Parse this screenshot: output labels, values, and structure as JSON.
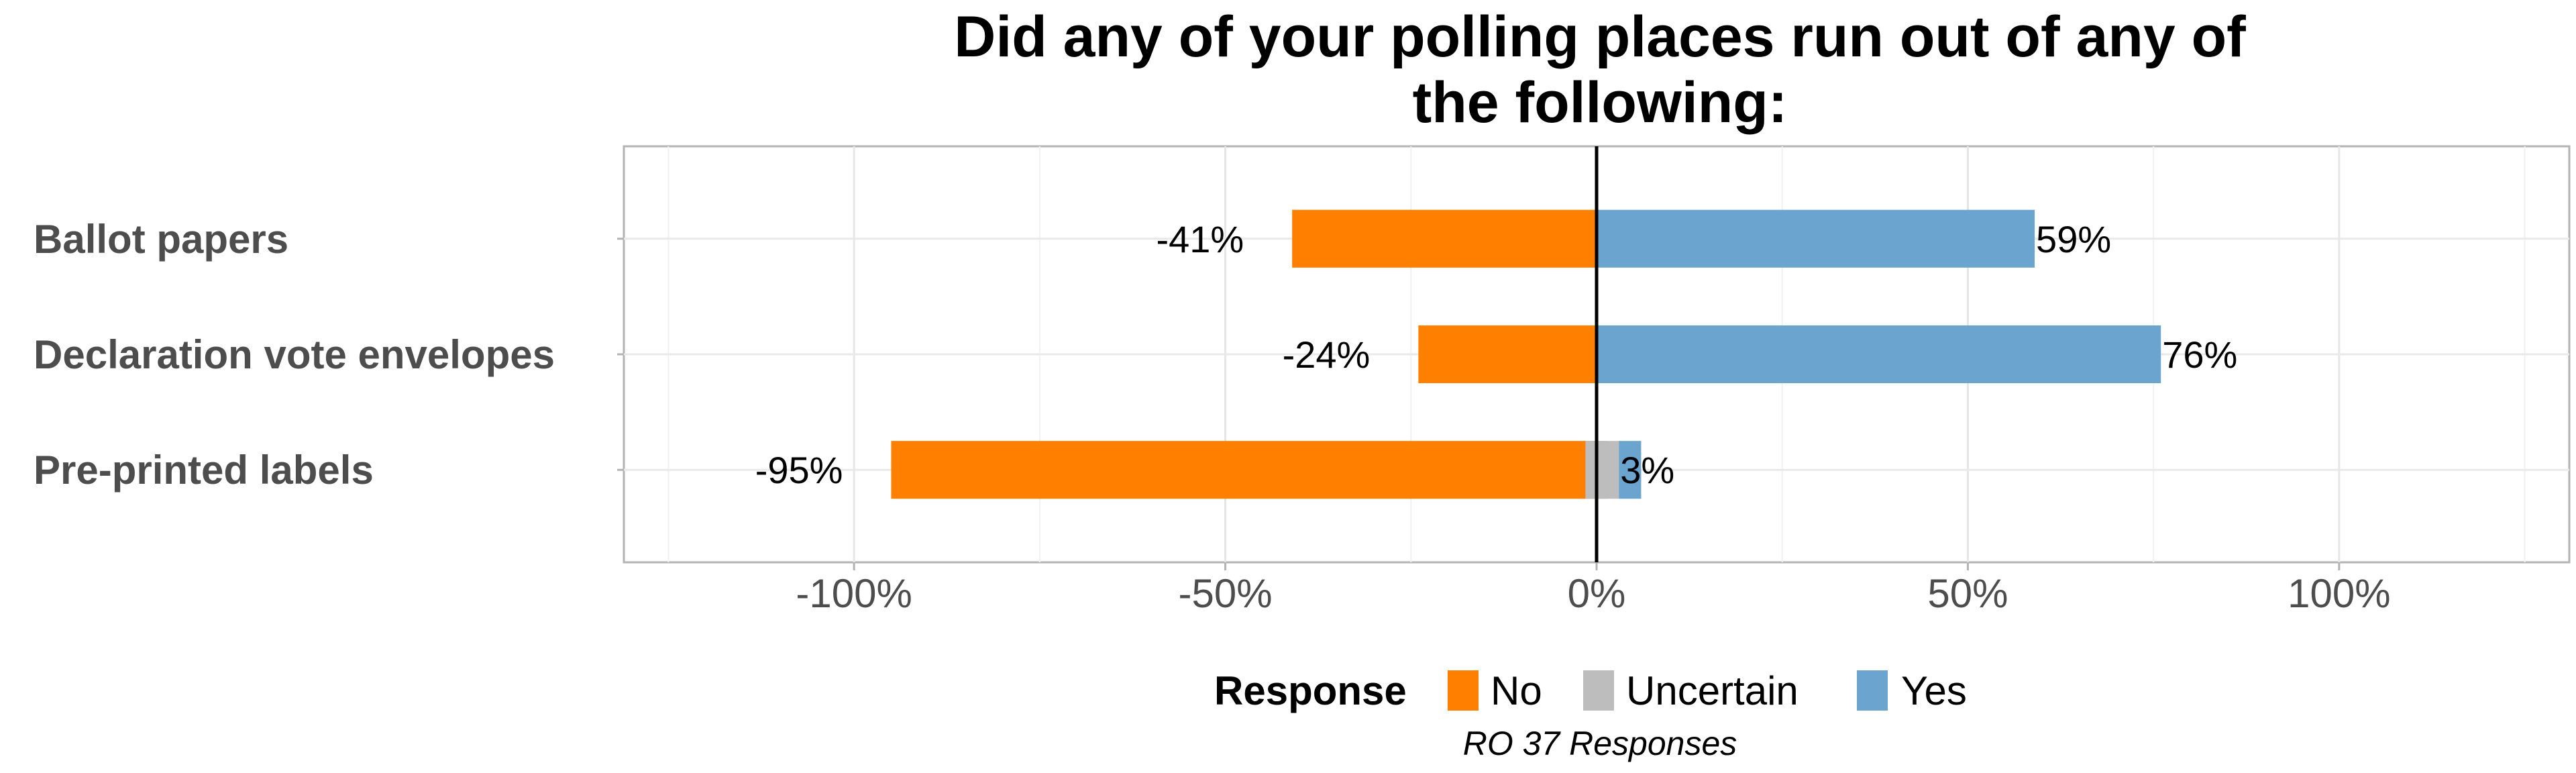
{
  "chart_data": {
    "type": "bar",
    "orientation": "horizontal",
    "stacked": true,
    "title": "Did any of your polling places run out of any of the following:",
    "title_lines": [
      "Did any of your polling places run out of any of",
      "the following:"
    ],
    "categories": [
      "Ballot papers",
      "Declaration vote envelopes",
      "Pre-printed labels"
    ],
    "series": [
      {
        "name": "No",
        "color": "#ff7f00",
        "values": [
          -41,
          -24,
          -95
        ]
      },
      {
        "name": "Uncertain",
        "color": "#bdbdbd",
        "values": [
          0,
          0,
          3
        ]
      },
      {
        "name": "Yes",
        "color": "#6ba5cf",
        "values": [
          59,
          76,
          3
        ]
      }
    ],
    "data_labels": {
      "no": [
        "-41%",
        "-24%",
        "-95%"
      ],
      "yes": [
        "59%",
        "76%",
        "3%"
      ]
    },
    "xlim": [
      -131,
      131
    ],
    "xticks": [
      -100,
      -50,
      0,
      50,
      100
    ],
    "xtick_labels": [
      "-100%",
      "-50%",
      "0%",
      "50%",
      "100%"
    ],
    "xlabel": "",
    "ylabel": "",
    "grid": true,
    "zero_line": true,
    "legend": {
      "title": "Response",
      "position": "bottom",
      "labels": [
        "No",
        "Uncertain",
        "Yes"
      ]
    },
    "caption": "RO 37 Responses"
  }
}
